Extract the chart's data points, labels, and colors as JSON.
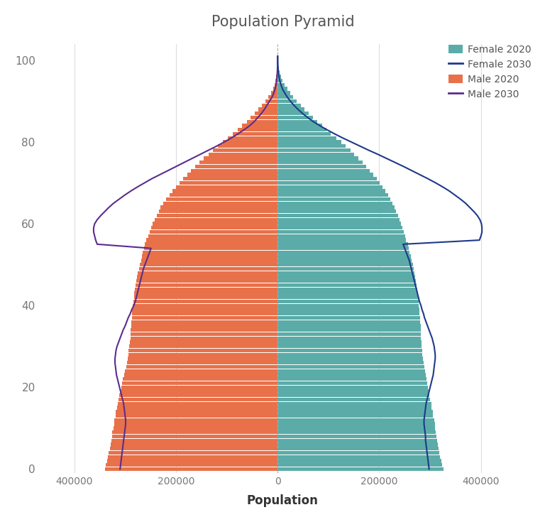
{
  "title": "Population Pyramid",
  "xlabel": "Population",
  "ages": [
    0,
    1,
    2,
    3,
    4,
    5,
    6,
    7,
    8,
    9,
    10,
    11,
    12,
    13,
    14,
    15,
    16,
    17,
    18,
    19,
    20,
    21,
    22,
    23,
    24,
    25,
    26,
    27,
    28,
    29,
    30,
    31,
    32,
    33,
    34,
    35,
    36,
    37,
    38,
    39,
    40,
    41,
    42,
    43,
    44,
    45,
    46,
    47,
    48,
    49,
    50,
    51,
    52,
    53,
    54,
    55,
    56,
    57,
    58,
    59,
    60,
    61,
    62,
    63,
    64,
    65,
    66,
    67,
    68,
    69,
    70,
    71,
    72,
    73,
    74,
    75,
    76,
    77,
    78,
    79,
    80,
    81,
    82,
    83,
    84,
    85,
    86,
    87,
    88,
    89,
    90,
    91,
    92,
    93,
    94,
    95,
    96,
    97,
    98,
    99,
    100,
    101
  ],
  "male_2020": [
    340000,
    338000,
    336000,
    334000,
    332000,
    330000,
    328000,
    327000,
    326000,
    325000,
    323000,
    322000,
    321000,
    319000,
    318000,
    316000,
    315000,
    313000,
    312000,
    310000,
    308000,
    306000,
    304000,
    302000,
    300000,
    298000,
    296000,
    295000,
    294000,
    293000,
    292000,
    291000,
    290000,
    289000,
    289000,
    288000,
    288000,
    287000,
    287000,
    286000,
    285000,
    284000,
    283000,
    282000,
    281000,
    280000,
    278000,
    277000,
    275000,
    273000,
    271000,
    269000,
    267000,
    265000,
    263000,
    261000,
    258000,
    255000,
    252000,
    249000,
    246000,
    242000,
    238000,
    234000,
    230000,
    225000,
    219000,
    213000,
    207000,
    200000,
    193000,
    186000,
    178000,
    170000,
    162000,
    154000,
    145000,
    136000,
    127000,
    118000,
    108000,
    98000,
    88000,
    79000,
    70000,
    61000,
    53000,
    45000,
    38000,
    31000,
    24000,
    18000,
    13000,
    9000,
    6000,
    4000,
    2500,
    1500,
    800,
    400,
    150,
    50
  ],
  "female_2020": [
    326000,
    324000,
    322000,
    320000,
    318000,
    316000,
    315000,
    314000,
    313000,
    311000,
    310000,
    309000,
    308000,
    306000,
    305000,
    303000,
    302000,
    300000,
    299000,
    297000,
    296000,
    294000,
    293000,
    291000,
    290000,
    289000,
    287000,
    286000,
    285000,
    284000,
    283000,
    283000,
    282000,
    282000,
    281000,
    281000,
    280000,
    280000,
    279000,
    279000,
    278000,
    278000,
    277000,
    276000,
    275000,
    274000,
    272000,
    271000,
    269000,
    268000,
    266000,
    264000,
    262000,
    260000,
    258000,
    256000,
    253000,
    251000,
    248000,
    245000,
    243000,
    240000,
    237000,
    233000,
    230000,
    226000,
    222000,
    217000,
    212000,
    207000,
    201000,
    195000,
    188000,
    181000,
    174000,
    167000,
    159000,
    151000,
    143000,
    134000,
    125000,
    115000,
    105000,
    96000,
    87000,
    78000,
    69000,
    61000,
    53000,
    46000,
    38000,
    31000,
    25000,
    19000,
    14000,
    10000,
    6500,
    4000,
    2200,
    1100,
    450,
    150
  ],
  "male_2030": [
    310000,
    309000,
    308000,
    307000,
    306000,
    305000,
    304000,
    303000,
    302000,
    301000,
    300000,
    299000,
    299000,
    300000,
    301000,
    302000,
    303000,
    305000,
    307000,
    309000,
    311000,
    313000,
    315000,
    317000,
    318000,
    319000,
    320000,
    320000,
    319000,
    318000,
    316000,
    313000,
    310000,
    307000,
    304000,
    300000,
    297000,
    294000,
    290000,
    287000,
    283000,
    280000,
    278000,
    276000,
    274000,
    272000,
    270000,
    268000,
    266000,
    264000,
    261000,
    258000,
    255000,
    252000,
    249000,
    355000,
    358000,
    360000,
    362000,
    362000,
    360000,
    355000,
    348000,
    340000,
    332000,
    323000,
    312000,
    301000,
    289000,
    276000,
    262000,
    248000,
    232000,
    216000,
    200000,
    184000,
    168000,
    152000,
    136000,
    120000,
    105000,
    91000,
    78000,
    66000,
    55000,
    46000,
    39000,
    32000,
    26000,
    21000,
    16000,
    11000,
    7500,
    5000,
    3200,
    2000,
    1200,
    650,
    320,
    140,
    50,
    15
  ],
  "female_2030": [
    298000,
    297000,
    296000,
    295000,
    294000,
    293000,
    292000,
    291000,
    291000,
    290000,
    289000,
    288000,
    288000,
    289000,
    290000,
    291000,
    292000,
    294000,
    296000,
    298000,
    300000,
    302000,
    304000,
    306000,
    307000,
    308000,
    309000,
    310000,
    310000,
    309000,
    308000,
    306000,
    304000,
    301000,
    298000,
    295000,
    292000,
    289000,
    287000,
    284000,
    282000,
    279000,
    277000,
    275000,
    273000,
    271000,
    269000,
    267000,
    265000,
    263000,
    261000,
    259000,
    256000,
    253000,
    250000,
    247000,
    397000,
    400000,
    402000,
    402000,
    401000,
    398000,
    393000,
    386000,
    378000,
    370000,
    360000,
    349000,
    338000,
    325000,
    311000,
    296000,
    280000,
    264000,
    248000,
    231000,
    214000,
    197000,
    179000,
    162000,
    145000,
    128000,
    112000,
    97000,
    83000,
    70000,
    59000,
    49000,
    40000,
    32000,
    25000,
    19000,
    14000,
    9500,
    6500,
    4200,
    2700,
    1600,
    850,
    400,
    150,
    50
  ],
  "female_color": "#5BACA8",
  "male_color": "#E8714A",
  "female_2030_color": "#1E3A8A",
  "male_2030_color": "#5B2D8E",
  "bg_color": "#FFFFFF",
  "ytick_positions": [
    0,
    20,
    40,
    60,
    80,
    100
  ],
  "xtick_positions": [
    -400000,
    -200000,
    0,
    200000,
    400000
  ],
  "xtick_labels": [
    "400000",
    "200000",
    "0",
    "200000",
    "400000"
  ],
  "ylim": [
    -1,
    104
  ],
  "xlim": [
    -470000,
    490000
  ],
  "grid_color": "#DDDDDD",
  "title_color": "#555555",
  "tick_color": "#777777"
}
